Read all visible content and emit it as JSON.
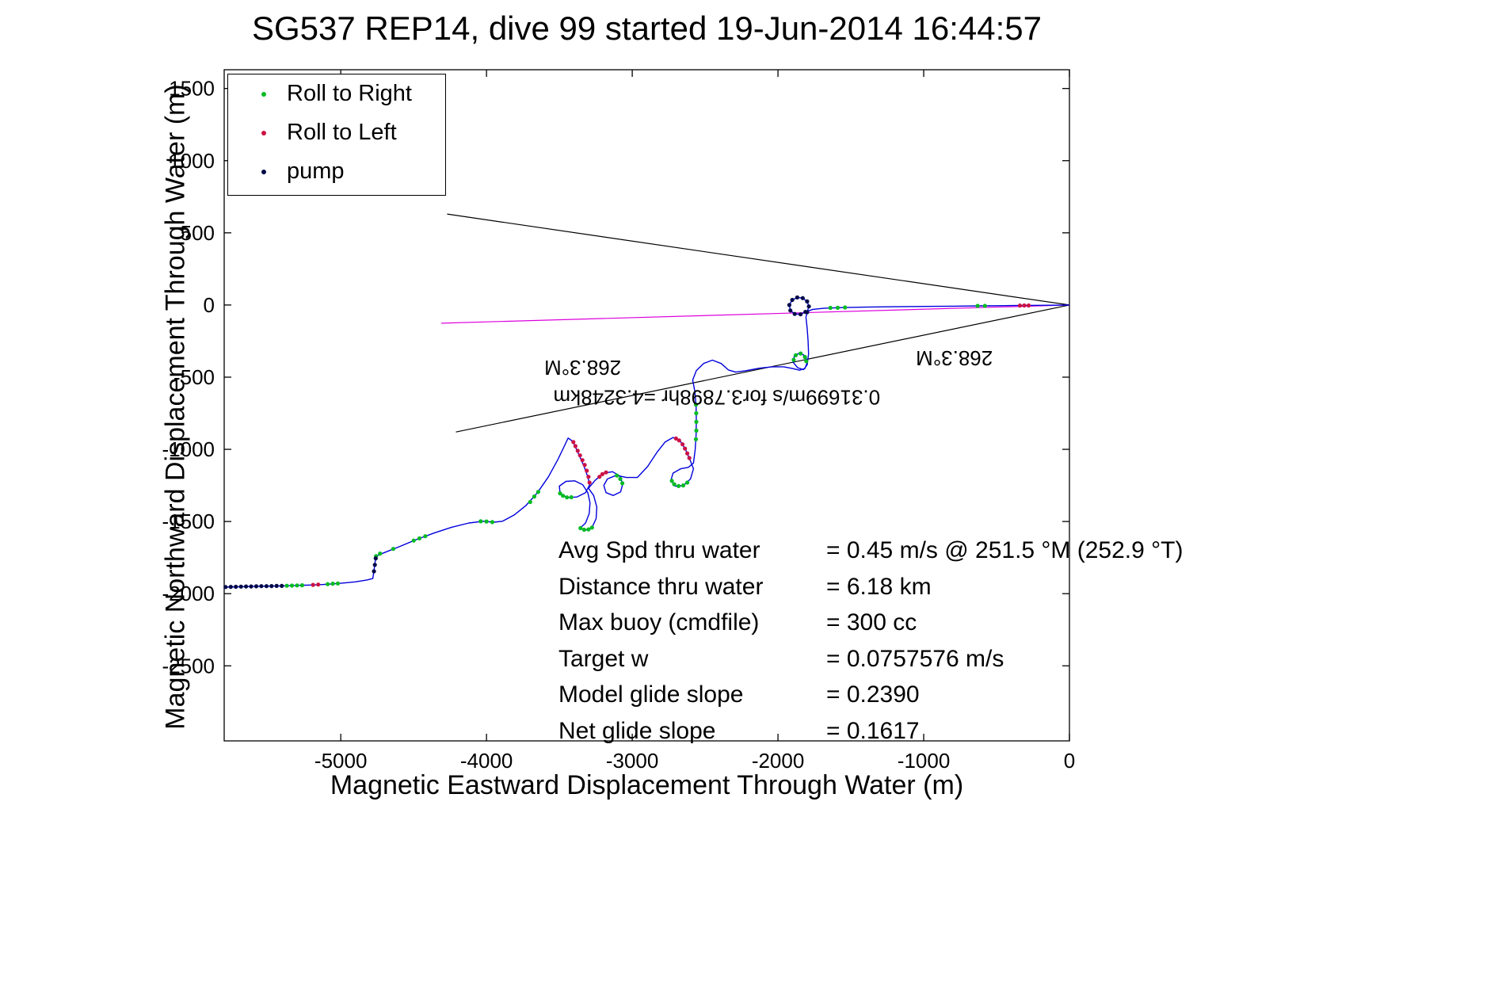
{
  "figure": {
    "title": "SG537 REP14, dive 99 started 19-Jun-2014 16:44:57"
  },
  "legend": {
    "items": [
      {
        "label": "Roll to Right",
        "color": "#00bb22"
      },
      {
        "label": "Roll to Left",
        "color": "#cc1144"
      },
      {
        "label": "pump",
        "color": "#000a46"
      }
    ]
  },
  "stats": {
    "rows": [
      {
        "label": "Avg Spd thru water",
        "value": "=  0.45 m/s @ 251.5 °M (252.9 °T)"
      },
      {
        "label": "Distance thru water",
        "value": "=  6.18 km"
      },
      {
        "label": "Max buoy (cmdfile)",
        "value": "= 300 cc"
      },
      {
        "label": "Target w",
        "value": "= 0.0757576 m/s"
      },
      {
        "label": "Model glide slope",
        "value": "= 0.2390"
      },
      {
        "label": "Net glide slope",
        "value": "= 0.1617"
      }
    ]
  },
  "chart_data": {
    "type": "line",
    "title": "SG537 REP14, dive 99 started 19-Jun-2014 16:44:57",
    "xlabel": "Magnetic Eastward Displacement Through Water (m)",
    "ylabel": "Magnetic Northward Displacement Through Water (m)",
    "xlim": [
      -5800,
      0
    ],
    "ylim": [
      -3020,
      1630
    ],
    "x_ticks": [
      -5000,
      -4000,
      -3000,
      -2000,
      -1000,
      0
    ],
    "y_ticks": [
      1500,
      1000,
      500,
      0,
      -500,
      -1000,
      -1500,
      -2000,
      -2500
    ],
    "grid": false,
    "legend_position": "top-left",
    "colors": {
      "track": "#0000dd",
      "roll_right": "#00bb22",
      "roll_left": "#cc1144",
      "pump": "#000a46",
      "guide": "#000000",
      "bearing": "#dd00dd"
    },
    "track": [
      [
        -5800,
        -1955
      ],
      [
        -5700,
        -1952
      ],
      [
        -5600,
        -1950
      ],
      [
        -5500,
        -1948
      ],
      [
        -5400,
        -1946
      ],
      [
        -5300,
        -1943
      ],
      [
        -5200,
        -1940
      ],
      [
        -5100,
        -1935
      ],
      [
        -5000,
        -1928
      ],
      [
        -4900,
        -1918
      ],
      [
        -4820,
        -1905
      ],
      [
        -4780,
        -1895
      ],
      [
        -4772,
        -1840
      ],
      [
        -4765,
        -1785
      ],
      [
        -4758,
        -1740
      ],
      [
        -4700,
        -1715
      ],
      [
        -4600,
        -1675
      ],
      [
        -4480,
        -1625
      ],
      [
        -4360,
        -1580
      ],
      [
        -4240,
        -1540
      ],
      [
        -4120,
        -1510
      ],
      [
        -4020,
        -1498
      ],
      [
        -3950,
        -1505
      ],
      [
        -3890,
        -1498
      ],
      [
        -3810,
        -1455
      ],
      [
        -3730,
        -1390
      ],
      [
        -3650,
        -1300
      ],
      [
        -3575,
        -1190
      ],
      [
        -3510,
        -1070
      ],
      [
        -3465,
        -975
      ],
      [
        -3440,
        -922
      ],
      [
        -3408,
        -945
      ],
      [
        -3382,
        -1000
      ],
      [
        -3356,
        -1060
      ],
      [
        -3330,
        -1120
      ],
      [
        -3307,
        -1185
      ],
      [
        -3292,
        -1245
      ],
      [
        -3320,
        -1300
      ],
      [
        -3380,
        -1330
      ],
      [
        -3445,
        -1335
      ],
      [
        -3495,
        -1305
      ],
      [
        -3500,
        -1255
      ],
      [
        -3455,
        -1222
      ],
      [
        -3395,
        -1218
      ],
      [
        -3340,
        -1245
      ],
      [
        -3305,
        -1300
      ],
      [
        -3290,
        -1370
      ],
      [
        -3295,
        -1445
      ],
      [
        -3320,
        -1510
      ],
      [
        -3360,
        -1548
      ],
      [
        -3320,
        -1560
      ],
      [
        -3275,
        -1540
      ],
      [
        -3248,
        -1480
      ],
      [
        -3243,
        -1400
      ],
      [
        -3265,
        -1320
      ],
      [
        -3300,
        -1270
      ],
      [
        -3255,
        -1215
      ],
      [
        -3195,
        -1165
      ],
      [
        -3135,
        -1155
      ],
      [
        -3085,
        -1185
      ],
      [
        -3065,
        -1240
      ],
      [
        -3080,
        -1295
      ],
      [
        -3130,
        -1320
      ],
      [
        -3180,
        -1300
      ],
      [
        -3195,
        -1250
      ],
      [
        -3170,
        -1205
      ],
      [
        -3110,
        -1180
      ],
      [
        -3040,
        -1195
      ],
      [
        -2965,
        -1195
      ],
      [
        -2895,
        -1120
      ],
      [
        -2830,
        -1020
      ],
      [
        -2775,
        -950
      ],
      [
        -2720,
        -918
      ],
      [
        -2672,
        -940
      ],
      [
        -2635,
        -1000
      ],
      [
        -2605,
        -1070
      ],
      [
        -2580,
        -1135
      ],
      [
        -2600,
        -1205
      ],
      [
        -2650,
        -1252
      ],
      [
        -2705,
        -1255
      ],
      [
        -2735,
        -1215
      ],
      [
        -2720,
        -1165
      ],
      [
        -2668,
        -1135
      ],
      [
        -2615,
        -1125
      ],
      [
        -2580,
        -1095
      ],
      [
        -2568,
        -1000
      ],
      [
        -2562,
        -900
      ],
      [
        -2560,
        -800
      ],
      [
        -2562,
        -700
      ],
      [
        -2570,
        -600
      ],
      [
        -2585,
        -520
      ],
      [
        -2560,
        -455
      ],
      [
        -2510,
        -405
      ],
      [
        -2450,
        -382
      ],
      [
        -2390,
        -405
      ],
      [
        -2340,
        -450
      ],
      [
        -2290,
        -465
      ],
      [
        -2220,
        -455
      ],
      [
        -2130,
        -438
      ],
      [
        -2040,
        -428
      ],
      [
        -1960,
        -428
      ],
      [
        -1900,
        -440
      ],
      [
        -1852,
        -452
      ],
      [
        -1815,
        -440
      ],
      [
        -1800,
        -400
      ],
      [
        -1810,
        -355
      ],
      [
        -1850,
        -332
      ],
      [
        -1888,
        -352
      ],
      [
        -1895,
        -398
      ],
      [
        -1865,
        -435
      ],
      [
        -1825,
        -448
      ],
      [
        -1800,
        -415
      ],
      [
        -1790,
        -340
      ],
      [
        -1793,
        -250
      ],
      [
        -1800,
        -160
      ],
      [
        -1808,
        -85
      ],
      [
        -1800,
        -50
      ],
      [
        -1788,
        -10
      ],
      [
        -1800,
        25
      ],
      [
        -1830,
        48
      ],
      [
        -1868,
        52
      ],
      [
        -1902,
        35
      ],
      [
        -1922,
        0
      ],
      [
        -1915,
        -38
      ],
      [
        -1885,
        -62
      ],
      [
        -1845,
        -65
      ],
      [
        -1812,
        -48
      ],
      [
        -1760,
        -30
      ],
      [
        -1680,
        -22
      ],
      [
        -1560,
        -18
      ],
      [
        -1400,
        -15
      ],
      [
        -1200,
        -12
      ],
      [
        -1000,
        -10
      ],
      [
        -800,
        -8
      ],
      [
        -600,
        -6
      ],
      [
        -400,
        -4
      ],
      [
        -200,
        -2
      ],
      [
        0,
        0
      ]
    ],
    "markers": {
      "pump": [
        [
          -5790,
          -1954
        ],
        [
          -5755,
          -1953
        ],
        [
          -5720,
          -1952
        ],
        [
          -5685,
          -1951
        ],
        [
          -5650,
          -1950
        ],
        [
          -5615,
          -1950
        ],
        [
          -5580,
          -1949
        ],
        [
          -5545,
          -1948
        ],
        [
          -5510,
          -1948
        ],
        [
          -5475,
          -1947
        ],
        [
          -5440,
          -1946
        ],
        [
          -5405,
          -1946
        ],
        [
          -4772,
          -1845
        ],
        [
          -4766,
          -1800
        ],
        [
          -4760,
          -1755
        ],
        [
          -1788,
          -10
        ],
        [
          -1800,
          25
        ],
        [
          -1830,
          48
        ],
        [
          -1868,
          52
        ],
        [
          -1902,
          35
        ],
        [
          -1922,
          0
        ],
        [
          -1915,
          -38
        ],
        [
          -1885,
          -62
        ],
        [
          -1845,
          -65
        ],
        [
          -1812,
          -48
        ],
        [
          -1800,
          -50
        ]
      ],
      "roll_right": [
        [
          -5370,
          -1945
        ],
        [
          -5335,
          -1944
        ],
        [
          -5300,
          -1943
        ],
        [
          -5265,
          -1942
        ],
        [
          -5090,
          -1934
        ],
        [
          -5055,
          -1931
        ],
        [
          -5020,
          -1929
        ],
        [
          -4758,
          -1740
        ],
        [
          -4730,
          -1722
        ],
        [
          -4640,
          -1690
        ],
        [
          -4500,
          -1632
        ],
        [
          -4460,
          -1617
        ],
        [
          -4420,
          -1602
        ],
        [
          -4040,
          -1499
        ],
        [
          -4000,
          -1500
        ],
        [
          -3960,
          -1504
        ],
        [
          -3700,
          -1365
        ],
        [
          -3672,
          -1327
        ],
        [
          -3645,
          -1295
        ],
        [
          -3495,
          -1305
        ],
        [
          -3475,
          -1322
        ],
        [
          -3448,
          -1333
        ],
        [
          -3418,
          -1332
        ],
        [
          -3355,
          -1546
        ],
        [
          -3330,
          -1557
        ],
        [
          -3300,
          -1555
        ],
        [
          -3276,
          -1542
        ],
        [
          -3105,
          -1182
        ],
        [
          -3082,
          -1205
        ],
        [
          -3068,
          -1235
        ],
        [
          -2728,
          -1218
        ],
        [
          -2712,
          -1242
        ],
        [
          -2682,
          -1254
        ],
        [
          -2650,
          -1250
        ],
        [
          -2622,
          -1230
        ],
        [
          -2563,
          -930
        ],
        [
          -2560,
          -870
        ],
        [
          -2560,
          -810
        ],
        [
          -2561,
          -750
        ],
        [
          -2563,
          -690
        ],
        [
          -1806,
          -390
        ],
        [
          -1815,
          -360
        ],
        [
          -1845,
          -336
        ],
        [
          -1878,
          -348
        ],
        [
          -1892,
          -380
        ],
        [
          -1640,
          -20
        ],
        [
          -1590,
          -19
        ],
        [
          -1540,
          -17
        ],
        [
          -630,
          -6
        ],
        [
          -580,
          -6
        ]
      ],
      "roll_left": [
        [
          -5190,
          -1939
        ],
        [
          -5155,
          -1937
        ],
        [
          -3404,
          -950
        ],
        [
          -3390,
          -978
        ],
        [
          -3374,
          -1010
        ],
        [
          -3358,
          -1042
        ],
        [
          -3342,
          -1075
        ],
        [
          -3326,
          -1108
        ],
        [
          -3312,
          -1148
        ],
        [
          -3300,
          -1190
        ],
        [
          -3293,
          -1230
        ],
        [
          -3225,
          -1190
        ],
        [
          -3205,
          -1172
        ],
        [
          -3180,
          -1160
        ],
        [
          -2700,
          -925
        ],
        [
          -2678,
          -938
        ],
        [
          -2655,
          -965
        ],
        [
          -2638,
          -995
        ],
        [
          -2622,
          -1028
        ],
        [
          -2608,
          -1060
        ],
        [
          -340,
          -4
        ],
        [
          -310,
          -3
        ],
        [
          -280,
          -3
        ]
      ]
    },
    "guide_lines": [
      {
        "name": "bearing-upper",
        "color": "#000000",
        "from": [
          0,
          0
        ],
        "to": [
          -4270,
          630
        ]
      },
      {
        "name": "bearing-lower",
        "color": "#000000",
        "from": [
          0,
          0
        ],
        "to": [
          -4210,
          -880
        ]
      },
      {
        "name": "bearing-mid",
        "color": "#dd00dd",
        "from": [
          0,
          0
        ],
        "to": [
          -4310,
          -126
        ]
      }
    ],
    "annotations": [
      {
        "text": "268.3°M",
        "x": -3340,
        "y": -385,
        "rotate": 180
      },
      {
        "text": "268.3°M",
        "x": -790,
        "y": -320,
        "rotate": 180
      },
      {
        "text": "0.31699m/s for3.7898hr =4.3248km",
        "x": -2420,
        "y": -590,
        "rotate": 180
      }
    ]
  }
}
